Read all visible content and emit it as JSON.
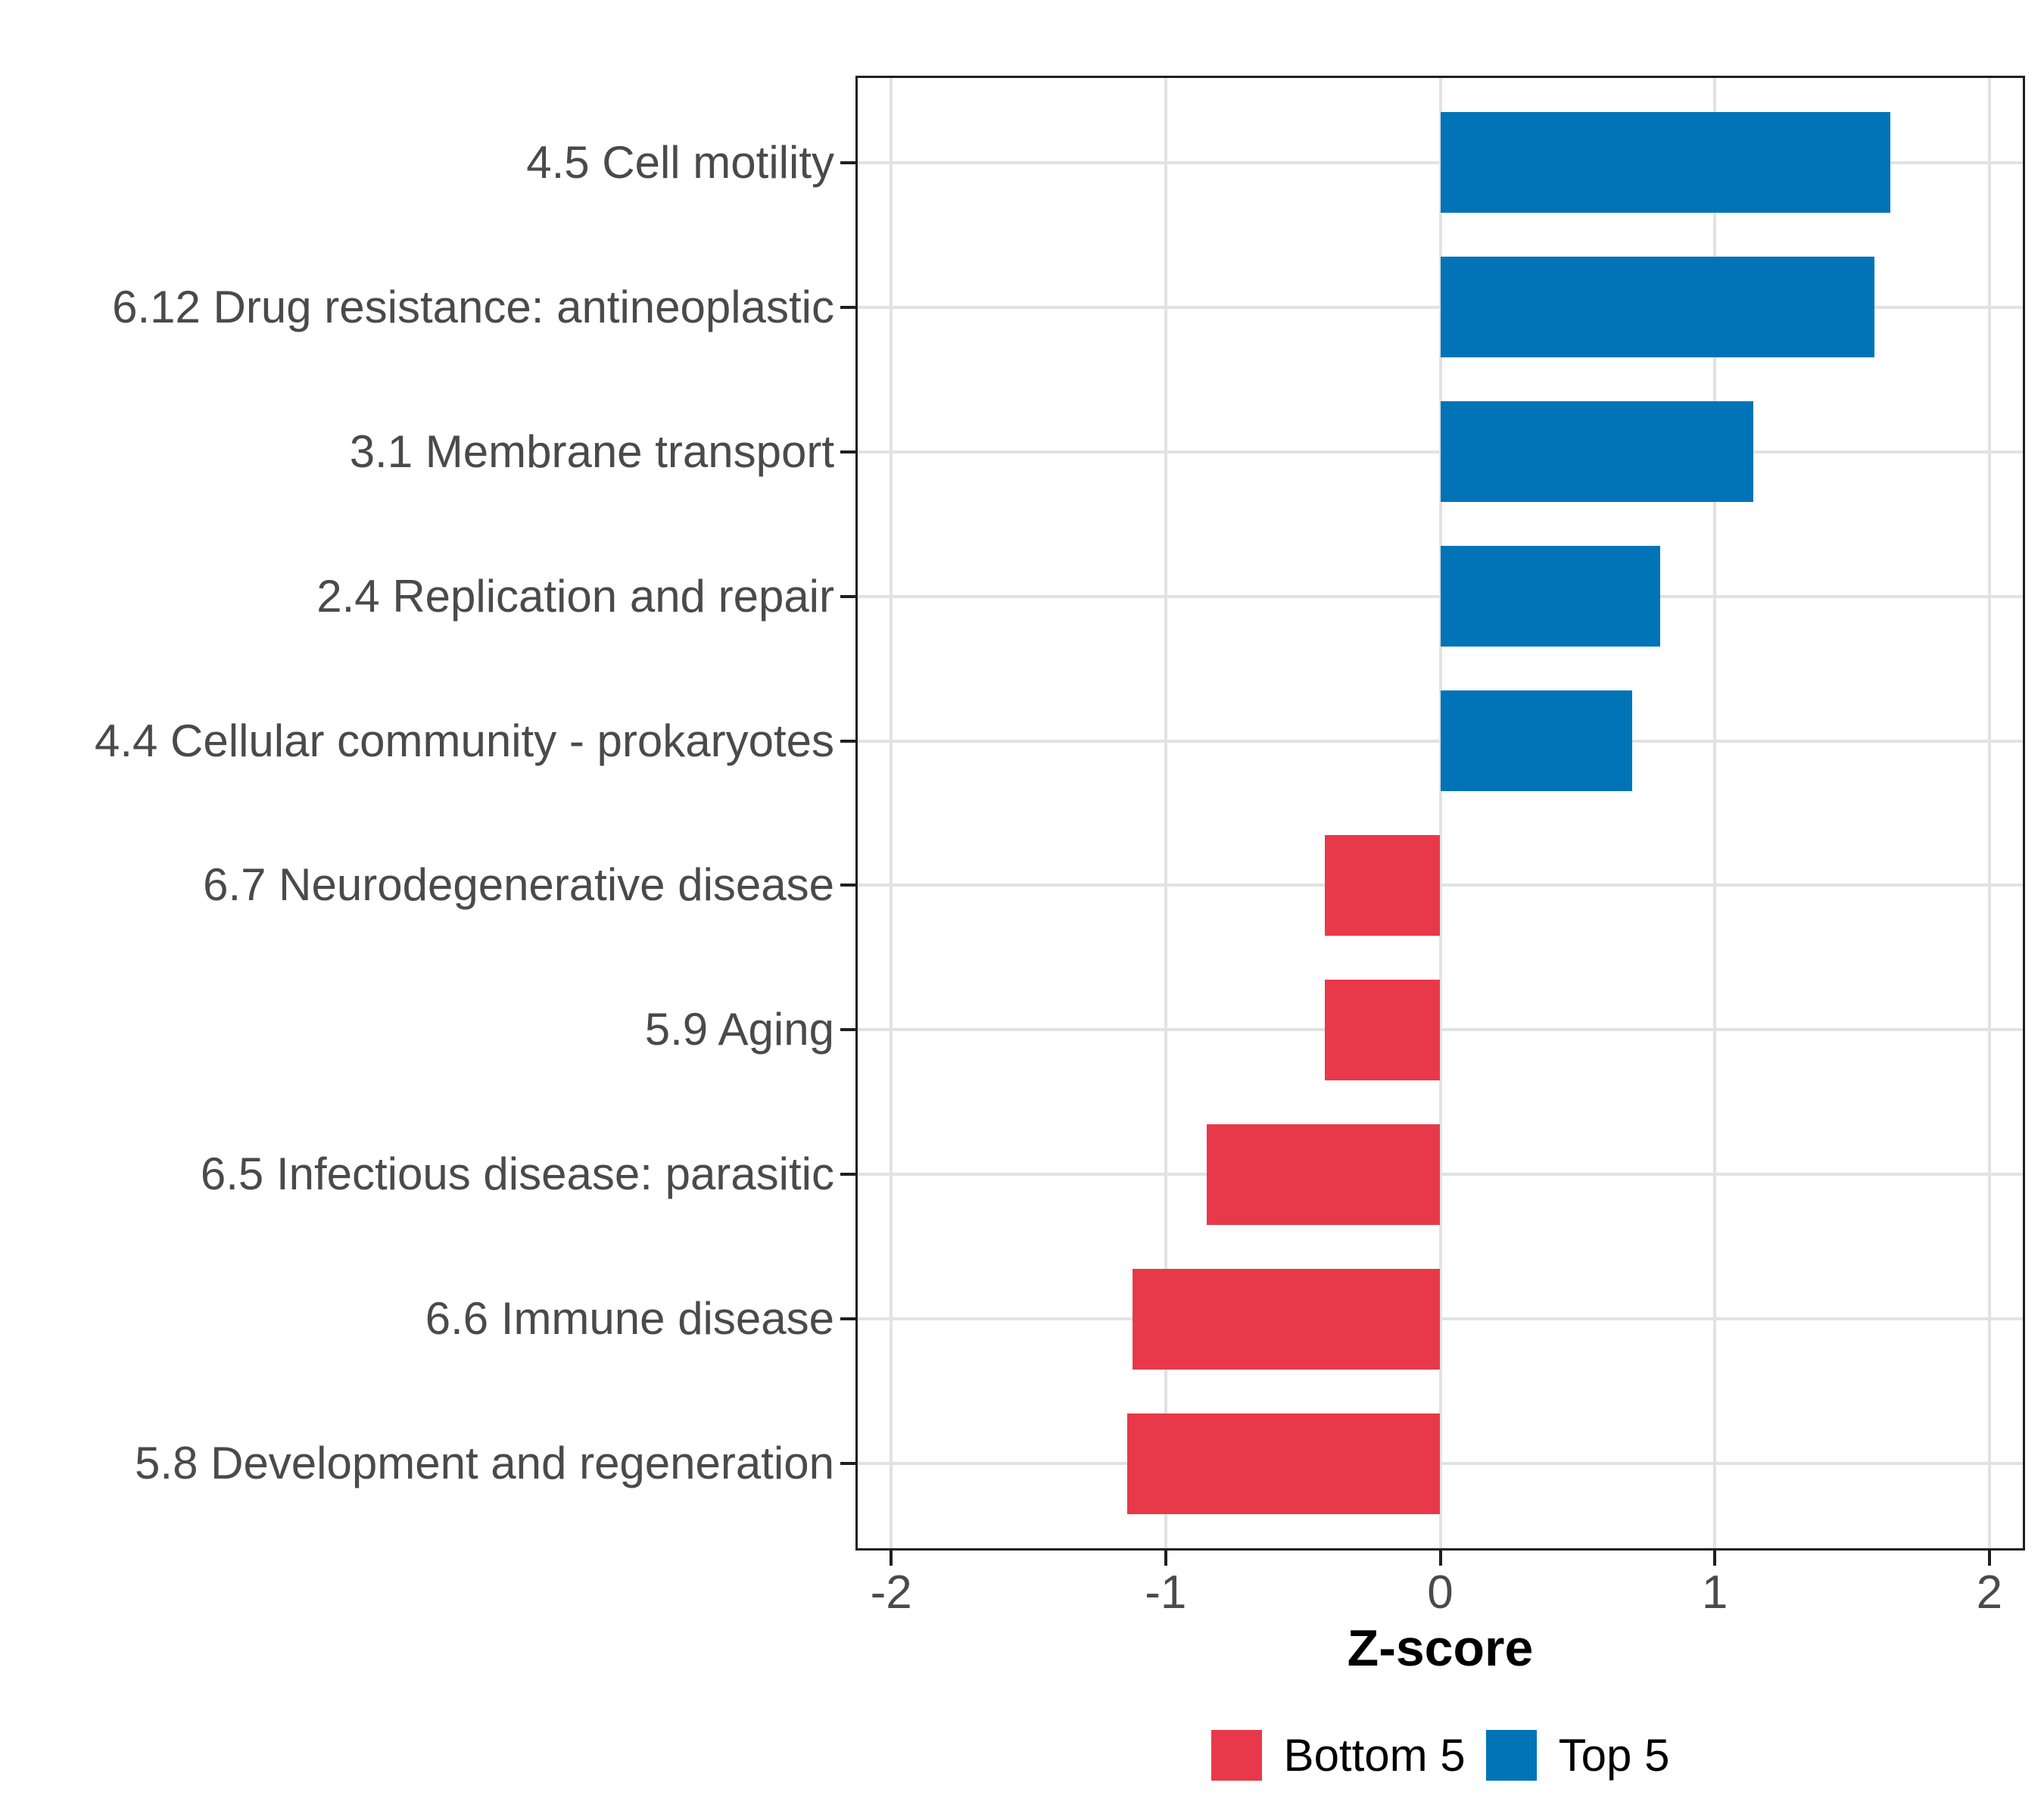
{
  "chart_data": {
    "type": "bar",
    "orientation": "horizontal",
    "title": "",
    "xlabel": "Z-score",
    "ylabel": "",
    "categories": [
      "4.5 Cell motility",
      "6.12 Drug resistance: antineoplastic",
      "3.1 Membrane transport",
      "2.4 Replication and repair",
      "4.4 Cellular community - prokaryotes",
      "6.7 Neurodegenerative disease",
      "5.9 Aging",
      "6.5 Infectious disease: parasitic",
      "6.6 Immune disease",
      "5.8 Development and regeneration"
    ],
    "values": [
      1.64,
      1.58,
      1.14,
      0.8,
      0.7,
      -0.42,
      -0.42,
      -0.85,
      -1.12,
      -1.14
    ],
    "groups": [
      "Top 5",
      "Top 5",
      "Top 5",
      "Top 5",
      "Top 5",
      "Bottom 5",
      "Bottom 5",
      "Bottom 5",
      "Bottom 5",
      "Bottom 5"
    ],
    "group_colors": {
      "Bottom 5": "#E8394A",
      "Top 5": "#0074B6"
    },
    "x_ticks": [
      -2,
      -1,
      0,
      1,
      2
    ],
    "x_tick_labels": [
      "-2",
      "-1",
      "0",
      "1",
      "2"
    ],
    "xlim": [
      -2.13,
      2.13
    ],
    "bar_width_fraction": 0.7,
    "grid": "major-only",
    "legend": {
      "position": "bottom",
      "entries": [
        {
          "label": "Bottom 5",
          "color": "#E8394A"
        },
        {
          "label": "Top 5",
          "color": "#0074B6"
        }
      ]
    }
  },
  "colors": {
    "background": "#FFFFFF",
    "gridline": "#E2E2E2",
    "axis_line": "#1F1F1F",
    "tick_label": "#4A4A4A",
    "axis_title": "#000000",
    "bar_positive": "#0074B6",
    "bar_negative": "#E8394A"
  }
}
